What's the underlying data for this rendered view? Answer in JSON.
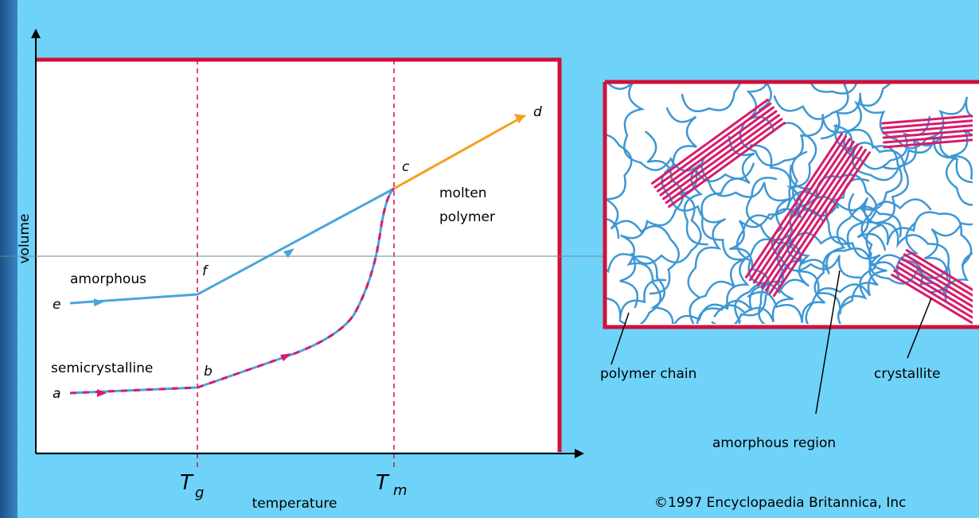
{
  "graph": {
    "y_axis_label": "volume",
    "x_axis_label": "temperature",
    "tg": {
      "main": "T",
      "sub": "g"
    },
    "tm": {
      "main": "T",
      "sub": "m"
    },
    "curves": {
      "amorphous": "amorphous",
      "semicrystalline": "semicrystalline",
      "molten_line1": "molten",
      "molten_line2": "polymer"
    },
    "points": {
      "a": "a",
      "b": "b",
      "c": "c",
      "d": "d",
      "e": "e",
      "f": "f"
    }
  },
  "structure": {
    "polymer_chain": "polymer chain",
    "amorphous_region": "amorphous region",
    "crystallite": "crystallite"
  },
  "credit": "©1997 Encyclopaedia Britannica, Inc"
}
